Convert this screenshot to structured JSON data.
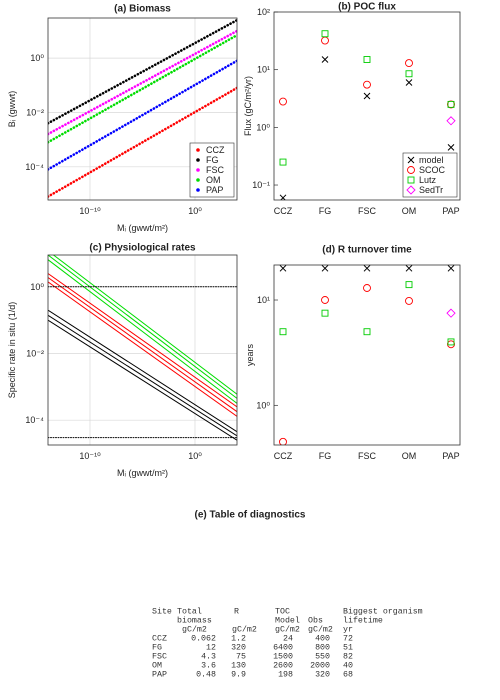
{
  "chart_data": [
    {
      "type": "line",
      "title": "(a) Biomass",
      "xlabel": "Mᵢ (gwwt/m²)",
      "ylabel": "Bᵢ (gwwt)",
      "xscale": "log",
      "yscale": "log",
      "grid": true,
      "legend": "lower right",
      "line_style": "dotted",
      "x": [
        1e-14,
        10000
      ],
      "xlim": [
        1e-14,
        10000
      ],
      "ylim": [
        6e-06,
        30
      ],
      "xticks": [
        {
          "value": 1e-10,
          "label": "10⁻¹⁰"
        },
        {
          "value": 1,
          "label": "10⁰"
        }
      ],
      "yticks": [
        {
          "value": 0.0001,
          "label": "10⁻⁴"
        },
        {
          "value": 0.01,
          "label": "10⁻²"
        },
        {
          "value": 1,
          "label": "10⁰"
        }
      ],
      "series": [
        {
          "name": "CCZ",
          "color": "#ff0000",
          "values": [
            8e-06,
            0.08
          ]
        },
        {
          "name": "FG",
          "color": "#000000",
          "values": [
            0.004,
            25
          ]
        },
        {
          "name": "FSC",
          "color": "#ff00ff",
          "values": [
            0.0016,
            10
          ]
        },
        {
          "name": "OM",
          "color": "#00dd00",
          "values": [
            0.0008,
            7
          ]
        },
        {
          "name": "PAP",
          "color": "#0000ff",
          "values": [
            8e-05,
            0.8
          ]
        }
      ]
    },
    {
      "type": "scatter",
      "title": "(b) POC flux",
      "ylabel": "Flux (gC/m²/yr)",
      "yscale": "log",
      "grid": false,
      "legend": "lower right",
      "categories": [
        "CCZ",
        "FG",
        "FSC",
        "OM",
        "PAP"
      ],
      "ylim": [
        0.055,
        100
      ],
      "yticks": [
        {
          "value": 0.1,
          "label": "10⁻¹"
        },
        {
          "value": 1,
          "label": "10⁰"
        },
        {
          "value": 10,
          "label": "10¹"
        },
        {
          "value": 100,
          "label": "10²"
        }
      ],
      "series": [
        {
          "name": "model",
          "marker": "x",
          "color": "#000000",
          "values": [
            0.06,
            15,
            3.5,
            6,
            0.45
          ]
        },
        {
          "name": "SCOC",
          "marker": "circle",
          "color": "#ff0000",
          "values": [
            2.8,
            32,
            5.5,
            13,
            2.5
          ]
        },
        {
          "name": "Lutz",
          "marker": "square",
          "color": "#00cc00",
          "values": [
            0.25,
            42,
            15,
            8.5,
            2.5
          ]
        },
        {
          "name": "SedTr",
          "marker": "diamond",
          "color": "#ff00ff",
          "values": [
            null,
            null,
            null,
            null,
            1.3
          ]
        }
      ]
    },
    {
      "type": "line",
      "title": "(c) Physiological rates",
      "xlabel": "Mᵢ (gwwt/m²)",
      "ylabel": "Specific rate in situ (1/d)",
      "xscale": "log",
      "yscale": "log",
      "grid": true,
      "line_style": "solid",
      "x": [
        1e-14,
        10000
      ],
      "xlim": [
        1e-14,
        10000
      ],
      "ylim": [
        1.8e-05,
        9
      ],
      "xticks": [
        {
          "value": 1e-10,
          "label": "10⁻¹⁰"
        },
        {
          "value": 1,
          "label": "10⁰"
        }
      ],
      "yticks": [
        {
          "value": 0.0001,
          "label": "10⁻⁴"
        },
        {
          "value": 0.01,
          "label": "10⁻²"
        },
        {
          "value": 1,
          "label": "10⁰"
        }
      ],
      "series": [
        {
          "color": "#00dd00",
          "values": [
            12,
            0.0006
          ]
        },
        {
          "color": "#00dd00",
          "values": [
            9,
            0.00045
          ]
        },
        {
          "color": "#00dd00",
          "values": [
            6.5,
            0.00032
          ]
        },
        {
          "color": "#ff0000",
          "values": [
            2.5,
            0.00025
          ]
        },
        {
          "color": "#ff0000",
          "values": [
            1.9,
            0.00018
          ]
        },
        {
          "color": "#ff0000",
          "values": [
            1.4,
            0.00013
          ]
        },
        {
          "color": "#000000",
          "values": [
            0.2,
            4.5e-05
          ]
        },
        {
          "color": "#000000",
          "values": [
            0.14,
            3.4e-05
          ]
        },
        {
          "color": "#000000",
          "values": [
            0.1,
            2.5e-05
          ]
        },
        {
          "color": "#000000",
          "line_style": "dotted",
          "values": [
            1,
            1
          ]
        },
        {
          "color": "#000000",
          "line_style": "dotted",
          "values": [
            3e-05,
            3e-05
          ]
        }
      ]
    },
    {
      "type": "scatter",
      "title": "(d) R turnover time",
      "ylabel": "years",
      "yscale": "log",
      "grid": false,
      "categories": [
        "CCZ",
        "FG",
        "FSC",
        "OM",
        "PAP"
      ],
      "ylim": [
        0.42,
        21.5
      ],
      "yticks": [
        {
          "value": 1,
          "label": "10⁰"
        },
        {
          "value": 10,
          "label": "10¹"
        }
      ],
      "series": [
        {
          "marker": "x",
          "color": "#000000",
          "values": [
            20,
            20,
            20,
            20,
            20
          ]
        },
        {
          "marker": "circle",
          "color": "#ff0000",
          "values": [
            0.45,
            10,
            13,
            9.8,
            3.8
          ]
        },
        {
          "marker": "square",
          "color": "#00cc00",
          "values": [
            5,
            7.5,
            5,
            14,
            4
          ]
        },
        {
          "marker": "diamond",
          "color": "#ff00ff",
          "values": [
            null,
            null,
            null,
            null,
            7.5
          ]
        }
      ]
    }
  ],
  "table": {
    "title": "(e) Table of diagnostics",
    "header_top": [
      "Site",
      "Total",
      "R",
      "TOC",
      "Biggest organism"
    ],
    "header_mid": [
      "biomass",
      "Model",
      "Obs",
      "lifetime"
    ],
    "units": [
      "gC/m2",
      "gC/m2",
      "gC/m2",
      "gC/m2",
      "yr"
    ],
    "rows": [
      [
        "CCZ",
        0.062,
        1.2,
        24,
        400,
        72
      ],
      [
        "FG",
        12,
        320,
        6400,
        800,
        51
      ],
      [
        "FSC",
        4.3,
        75,
        1500,
        550,
        82
      ],
      [
        "OM",
        3.6,
        130,
        2600,
        2000,
        40
      ],
      [
        "PAP",
        0.48,
        9.9,
        198,
        320,
        68
      ]
    ]
  }
}
